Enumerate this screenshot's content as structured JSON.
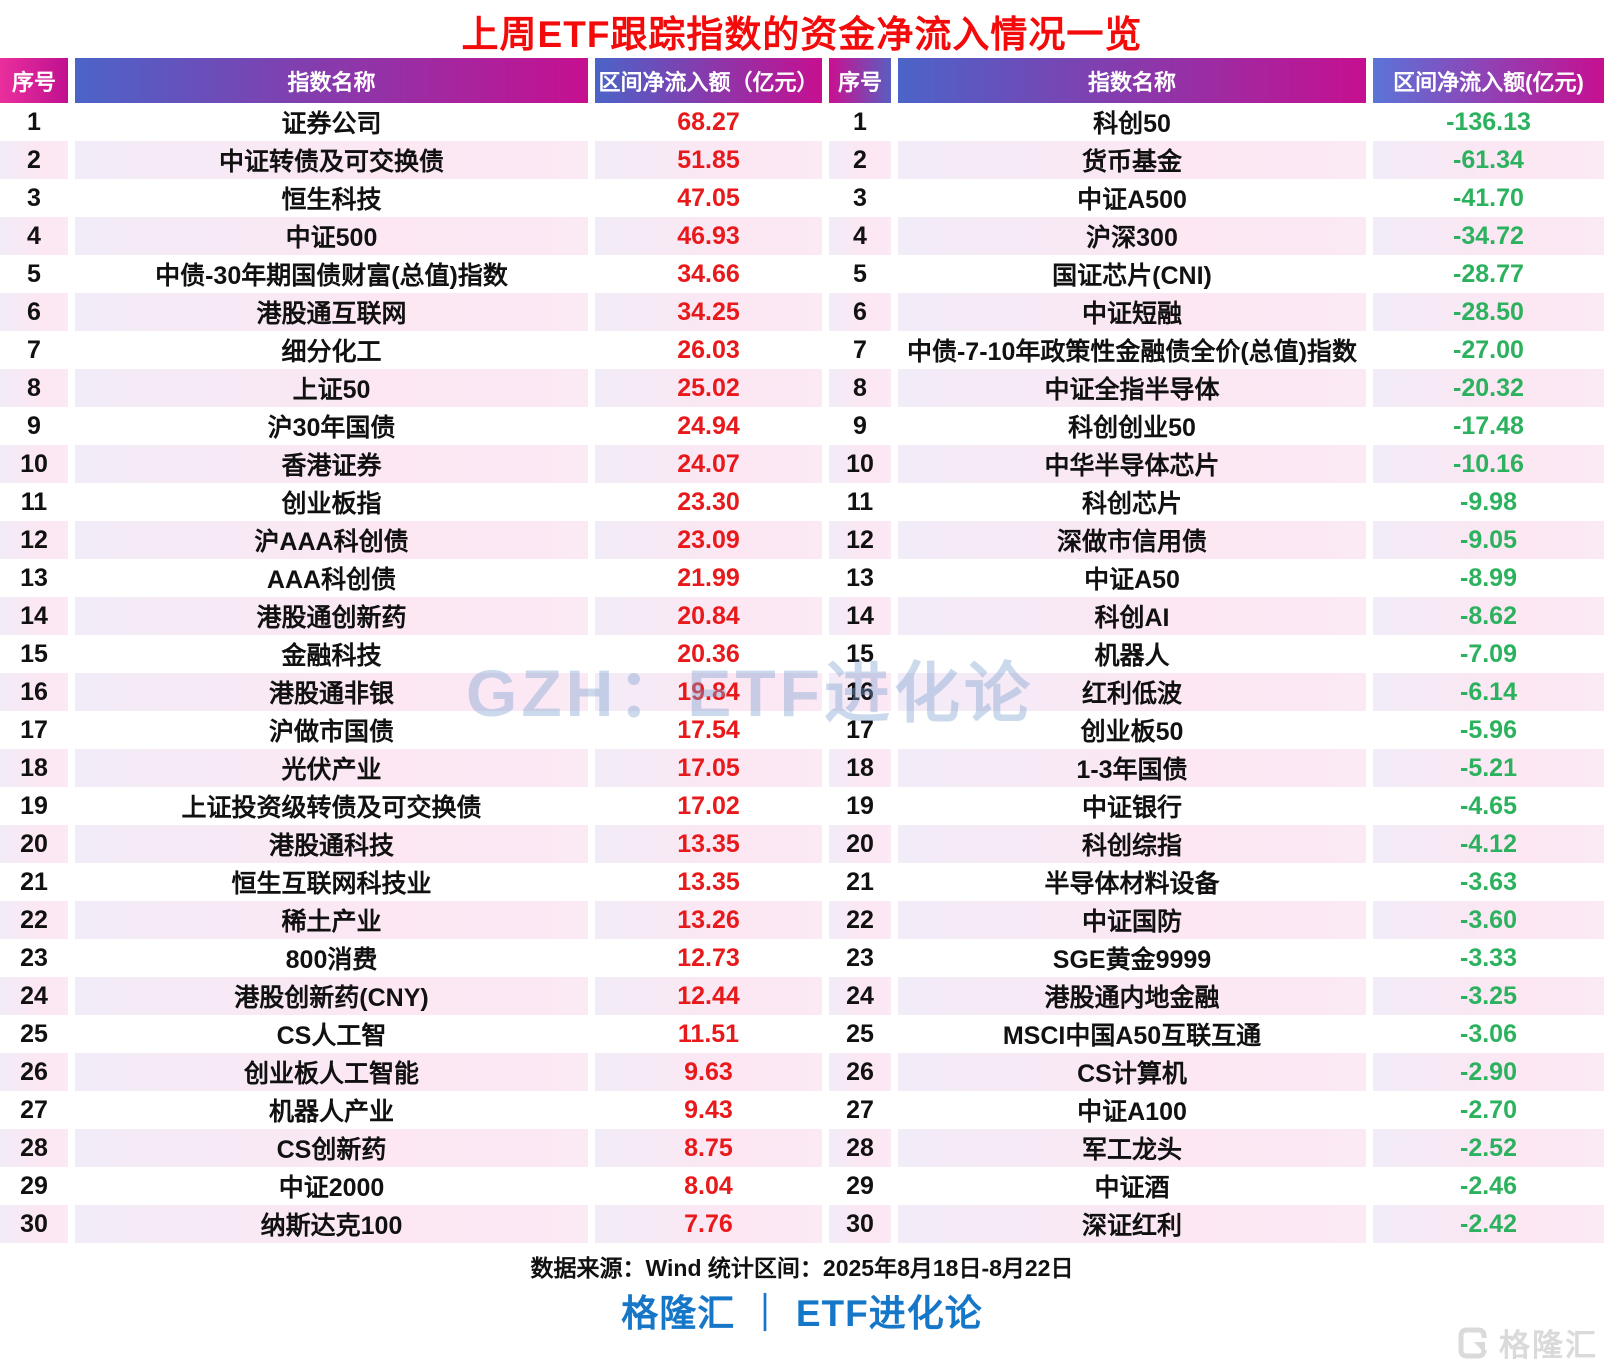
{
  "title": "上周ETF跟踪指数的资金净流入情况一览",
  "watermark": "GZH：ETF进化论",
  "colors": {
    "title_red": "#f30b0b",
    "inflow_red": "#e8191b",
    "outflow_green": "#2cb25e",
    "header_blue": "#4b64c8",
    "header_magenta": "#c60f90",
    "header_pink": "#ea2f9d",
    "brand_blue": "#1677c8"
  },
  "chart_data": [
    {
      "type": "table",
      "name": "inflow-top30",
      "columns": [
        "序号",
        "指数名称",
        "区间净流入额（亿元）"
      ],
      "rows": [
        [
          1,
          "证券公司",
          68.27
        ],
        [
          2,
          "中证转债及可交换债",
          51.85
        ],
        [
          3,
          "恒生科技",
          47.05
        ],
        [
          4,
          "中证500",
          46.93
        ],
        [
          5,
          "中债-30年期国债财富(总值)指数",
          34.66
        ],
        [
          6,
          "港股通互联网",
          34.25
        ],
        [
          7,
          "细分化工",
          26.03
        ],
        [
          8,
          "上证50",
          25.02
        ],
        [
          9,
          "沪30年国债",
          24.94
        ],
        [
          10,
          "香港证券",
          24.07
        ],
        [
          11,
          "创业板指",
          23.3
        ],
        [
          12,
          "沪AAA科创债",
          23.09
        ],
        [
          13,
          "AAA科创债",
          21.99
        ],
        [
          14,
          "港股通创新药",
          20.84
        ],
        [
          15,
          "金融科技",
          20.36
        ],
        [
          16,
          "港股通非银",
          19.84
        ],
        [
          17,
          "沪做市国债",
          17.54
        ],
        [
          18,
          "光伏产业",
          17.05
        ],
        [
          19,
          "上证投资级转债及可交换债",
          17.02
        ],
        [
          20,
          "港股通科技",
          13.35
        ],
        [
          21,
          "恒生互联网科技业",
          13.35
        ],
        [
          22,
          "稀土产业",
          13.26
        ],
        [
          23,
          "800消费",
          12.73
        ],
        [
          24,
          "港股创新药(CNY)",
          12.44
        ],
        [
          25,
          "CS人工智",
          11.51
        ],
        [
          26,
          "创业板人工智能",
          9.63
        ],
        [
          27,
          "机器人产业",
          9.43
        ],
        [
          28,
          "CS创新药",
          8.75
        ],
        [
          29,
          "中证2000",
          8.04
        ],
        [
          30,
          "纳斯达克100",
          7.76
        ]
      ]
    },
    {
      "type": "table",
      "name": "outflow-top30",
      "columns": [
        "序号",
        "指数名称",
        "区间净流入额(亿元)"
      ],
      "rows": [
        [
          1,
          "科创50",
          -136.13
        ],
        [
          2,
          "货币基金",
          -61.34
        ],
        [
          3,
          "中证A500",
          -41.7
        ],
        [
          4,
          "沪深300",
          -34.72
        ],
        [
          5,
          "国证芯片(CNI)",
          -28.77
        ],
        [
          6,
          "中证短融",
          -28.5
        ],
        [
          7,
          "中债-7-10年政策性金融债全价(总值)指数",
          -27.0
        ],
        [
          8,
          "中证全指半导体",
          -20.32
        ],
        [
          9,
          "科创创业50",
          -17.48
        ],
        [
          10,
          "中华半导体芯片",
          -10.16
        ],
        [
          11,
          "科创芯片",
          -9.98
        ],
        [
          12,
          "深做市信用债",
          -9.05
        ],
        [
          13,
          "中证A50",
          -8.99
        ],
        [
          14,
          "科创AI",
          -8.62
        ],
        [
          15,
          "机器人",
          -7.09
        ],
        [
          16,
          "红利低波",
          -6.14
        ],
        [
          17,
          "创业板50",
          -5.96
        ],
        [
          18,
          "1-3年国债",
          -5.21
        ],
        [
          19,
          "中证银行",
          -4.65
        ],
        [
          20,
          "科创综指",
          -4.12
        ],
        [
          21,
          "半导体材料设备",
          -3.63
        ],
        [
          22,
          "中证国防",
          -3.6
        ],
        [
          23,
          "SGE黄金9999",
          -3.33
        ],
        [
          24,
          "港股通内地金融",
          -3.25
        ],
        [
          25,
          "MSCI中国A50互联互通",
          -3.06
        ],
        [
          26,
          "CS计算机",
          -2.9
        ],
        [
          27,
          "中证A100",
          -2.7
        ],
        [
          28,
          "军工龙头",
          -2.52
        ],
        [
          29,
          "中证酒",
          -2.46
        ],
        [
          30,
          "深证红利",
          -2.42
        ]
      ]
    }
  ],
  "footer": {
    "source": "数据来源：Wind 统计区间：2025年8月18日-8月22日",
    "brand": "格隆汇 ｜ ETF进化论",
    "logo_text": "格隆汇"
  }
}
